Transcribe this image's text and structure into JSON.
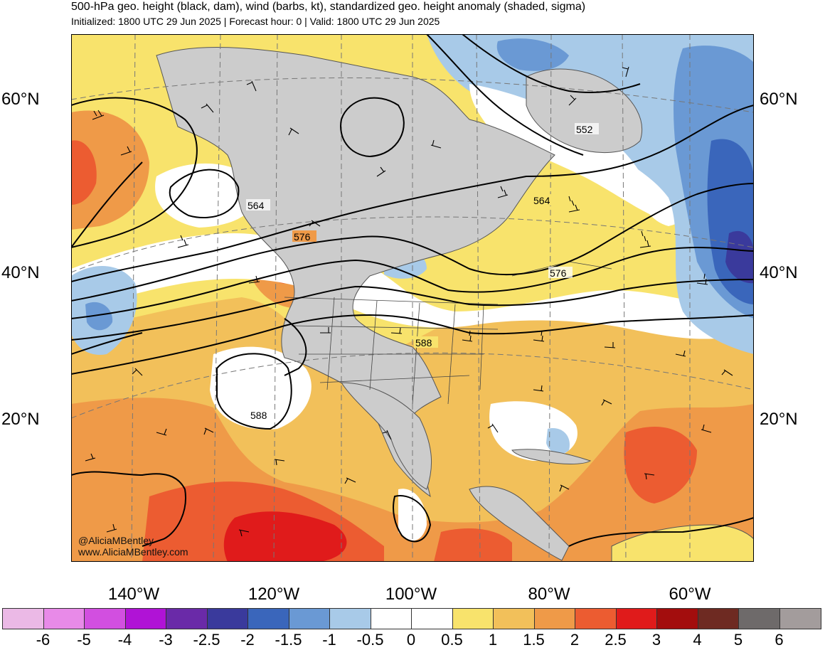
{
  "header": {
    "title": "500-hPa geo. height (black, dam), wind (barbs, kt), standardized geo. height anomaly (shaded, sigma)",
    "subtitle": "Initialized: 1800 UTC 29 Jun 2025 | Forecast hour: 0 | Valid: 1800 UTC 29 Jun 2025"
  },
  "map": {
    "lat_labels": [
      "60°N",
      "40°N",
      "20°N"
    ],
    "lon_labels": [
      "140°W",
      "120°W",
      "100°W",
      "80°W",
      "60°W"
    ],
    "contour_labels": [
      "552",
      "564",
      "564",
      "576",
      "576",
      "588",
      "588"
    ],
    "credit": {
      "handle": "@AliciaMBentley",
      "website": "www.AliciaMBentley.com"
    }
  },
  "colorbar": {
    "colors": [
      "#ebb9e6",
      "#e88ae8",
      "#d24fe0",
      "#b013d6",
      "#6a2aa8",
      "#3a3a9c",
      "#3a66bb",
      "#6a99d4",
      "#a8cae8",
      "#ffffff",
      "#ffffff",
      "#f8e36c",
      "#f2c05a",
      "#ef9a48",
      "#ec5c31",
      "#e01b1b",
      "#a30d0d",
      "#6e2a22",
      "#6e6a6a",
      "#a39c9c"
    ],
    "tick_labels": [
      "-6",
      "-5",
      "-4",
      "-3",
      "-2.5",
      "-2",
      "-1.5",
      "-1",
      "-0.5",
      "0",
      "0.5",
      "1",
      "1.5",
      "2",
      "2.5",
      "3",
      "4",
      "5",
      "6"
    ]
  }
}
